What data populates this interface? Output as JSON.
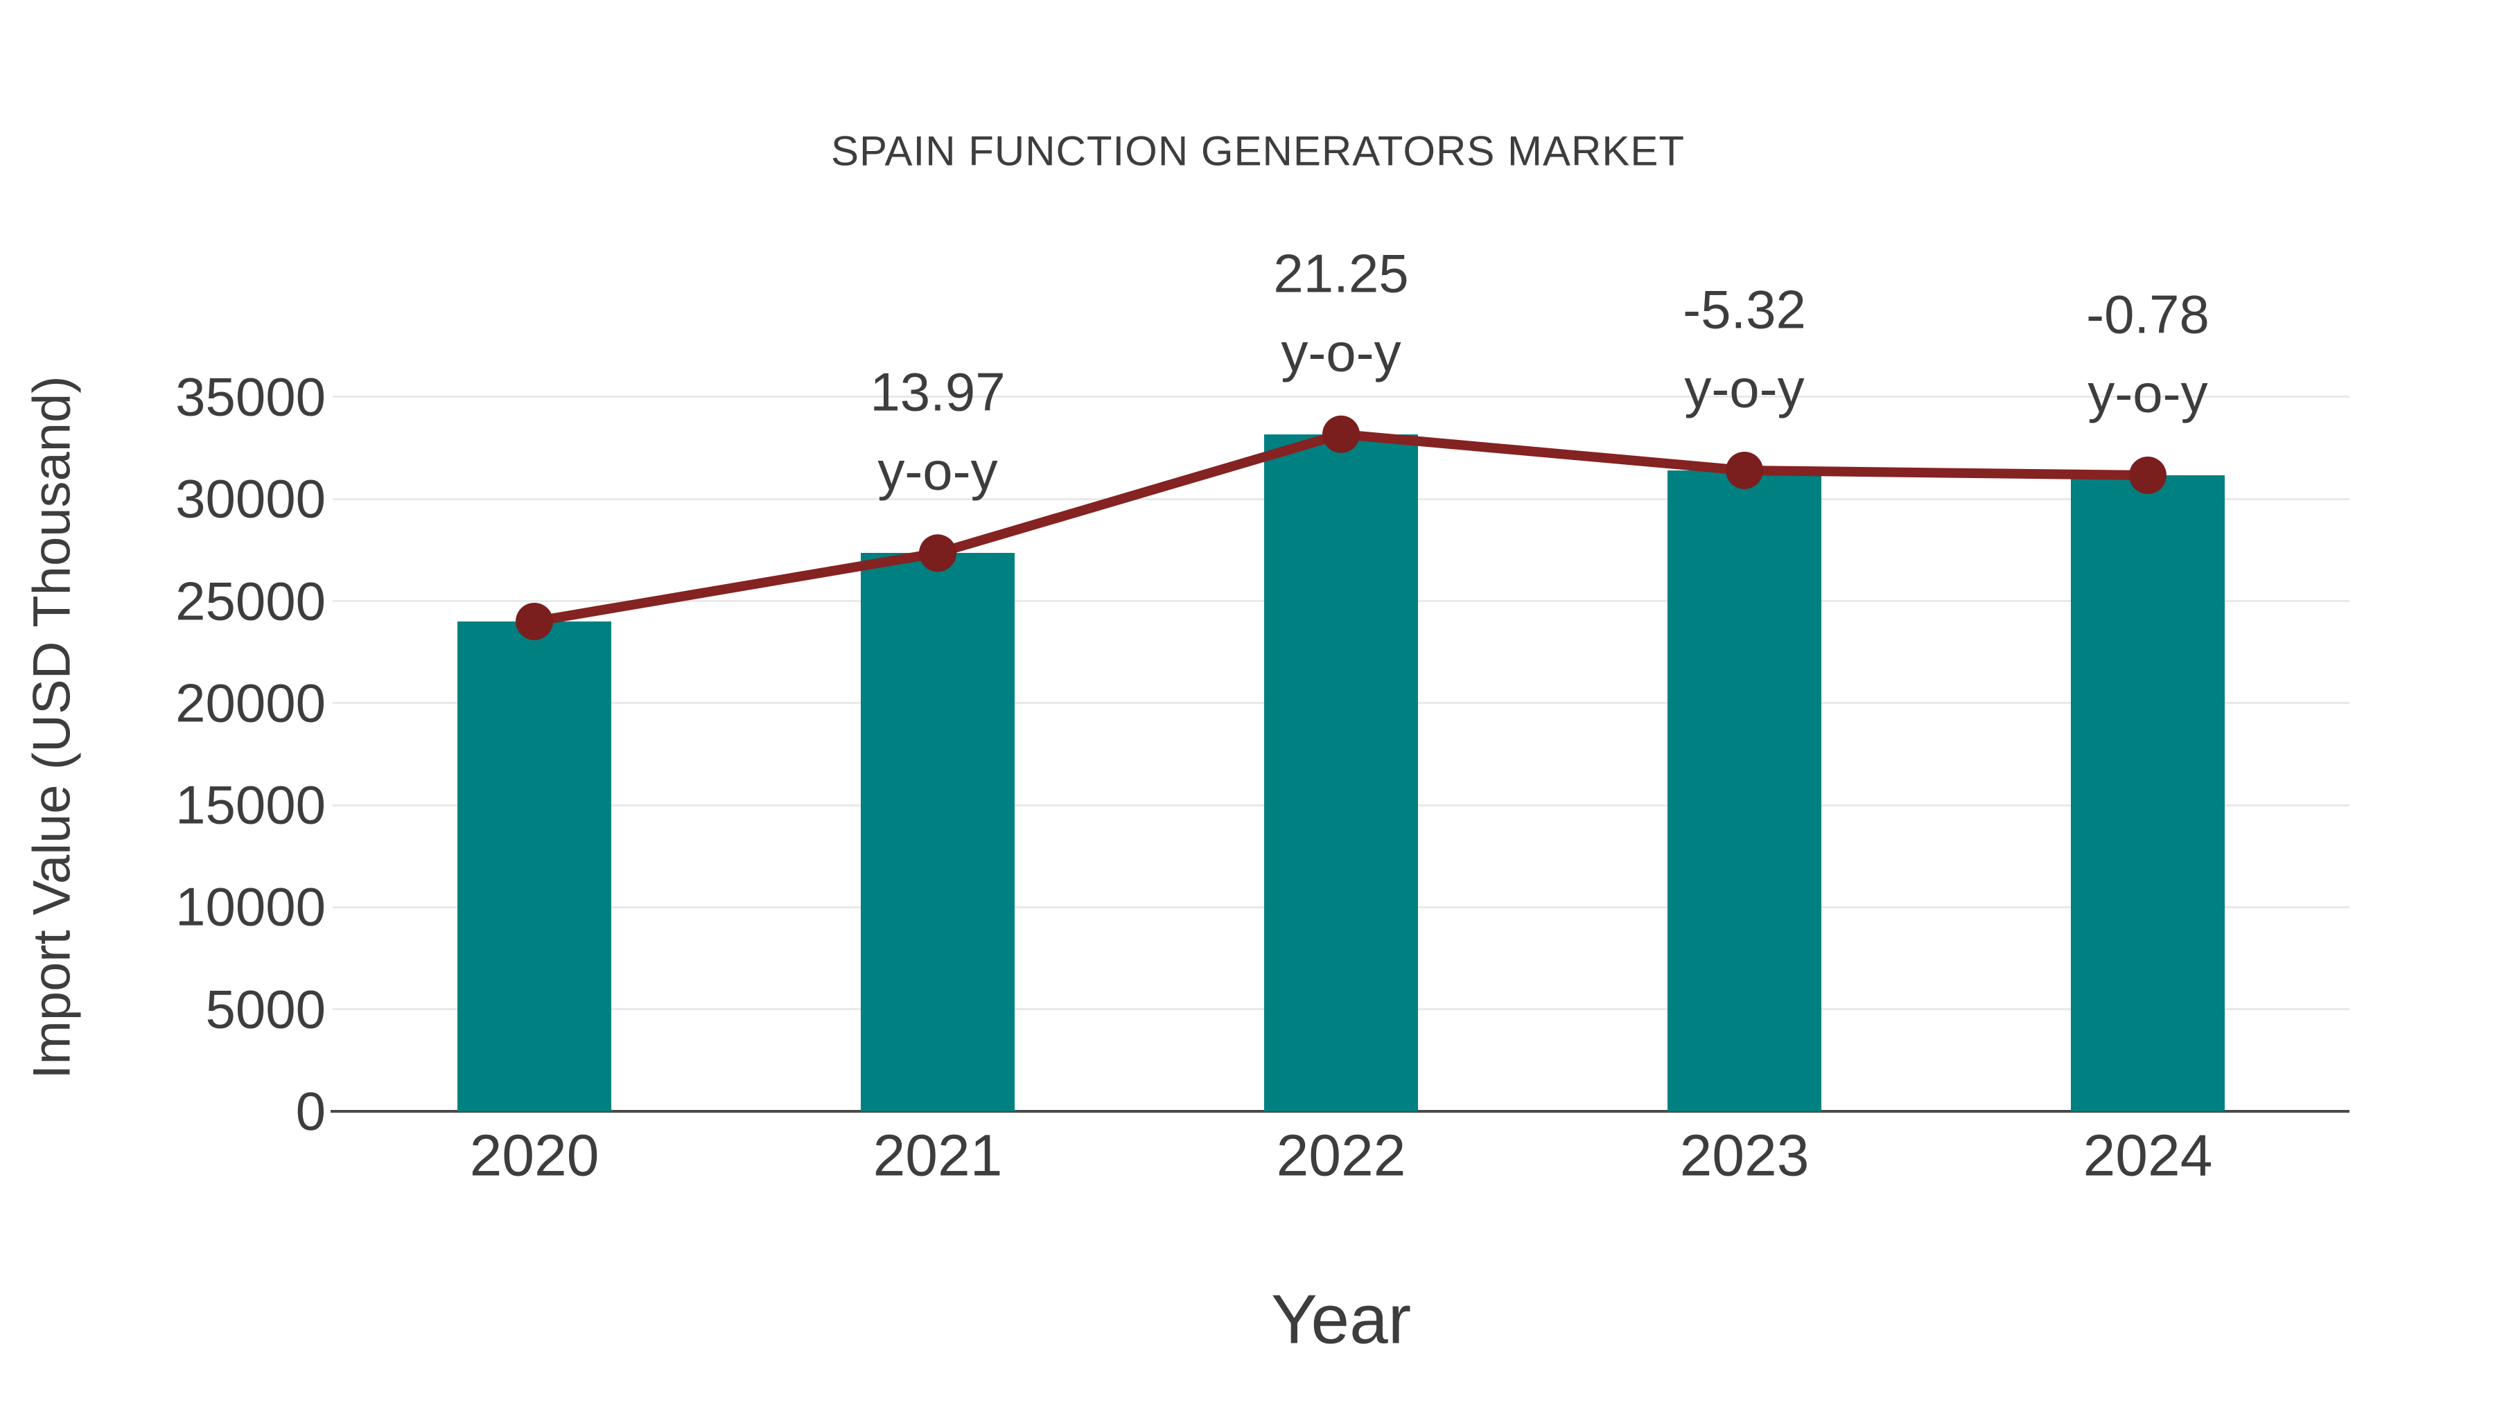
{
  "title": "SPAIN FUNCTION GENERATORS MARKET",
  "axes": {
    "x_label": "Year",
    "y_label": "Import Value (USD Thousand)"
  },
  "chart_data": {
    "type": "bar",
    "categories": [
      "2020",
      "2021",
      "2022",
      "2023",
      "2024"
    ],
    "series": [
      {
        "name": "Import Value (USD Thousand)",
        "type": "bar",
        "values": [
          24000,
          27350,
          33170,
          31400,
          31160
        ]
      },
      {
        "name": "y-o-y growth (%)",
        "type": "line",
        "values": [
          null,
          13.97,
          21.25,
          -5.32,
          -0.78
        ]
      }
    ],
    "annotations": [
      {
        "category": "2021",
        "value_label": "13.97",
        "unit_label": "y-o-y"
      },
      {
        "category": "2022",
        "value_label": "21.25",
        "unit_label": "y-o-y"
      },
      {
        "category": "2023",
        "value_label": "-5.32",
        "unit_label": "y-o-y"
      },
      {
        "category": "2024",
        "value_label": "-0.78",
        "unit_label": "y-o-y"
      }
    ],
    "title": "SPAIN FUNCTION GENERATORS MARKET",
    "xlabel": "Year",
    "ylabel": "Import Value (USD Thousand)",
    "y_ticks": [
      0,
      5000,
      10000,
      15000,
      20000,
      25000,
      30000,
      35000
    ],
    "ylim": [
      0,
      37500
    ],
    "grid": "horizontal",
    "legend": "none",
    "colors": {
      "bar": "#008080",
      "line": "#852222",
      "marker": "#7a1e1e",
      "text": "#3d3d3d",
      "gridline": "#e9e9e9",
      "axis": "#4a4a4a",
      "background": "#ffffff"
    }
  }
}
